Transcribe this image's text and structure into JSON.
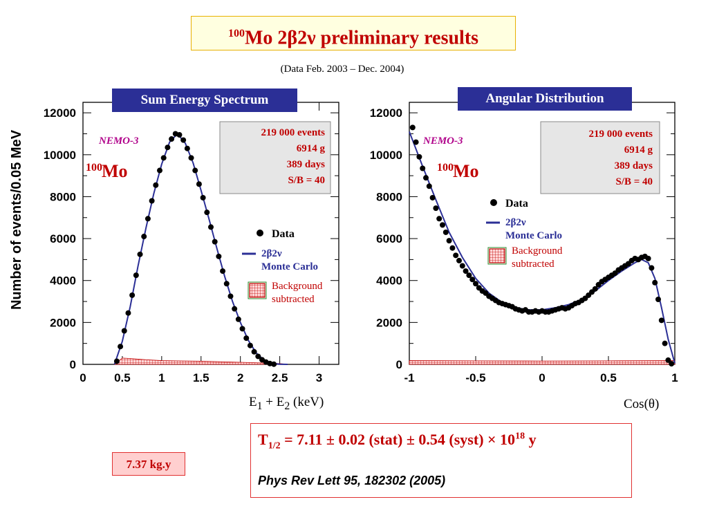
{
  "title": {
    "sup": "100",
    "text": "Mo 2β2ν preliminary results"
  },
  "subtitle": "(Data  Feb. 2003 –  Dec. 2004)",
  "panels": {
    "left_label": "Sum Energy Spectrum",
    "right_label": "Angular Distribution"
  },
  "ylabel": "Number of events/0.05 MeV",
  "annotations": {
    "experiment": "NEMO-3",
    "isotope_sup": "100",
    "isotope": "Mo",
    "info_lines": [
      "219 000  events",
      "6914 g",
      "389 days",
      "S/B = 40"
    ],
    "legend_data": "Data",
    "legend_mc_1": "2β2ν",
    "legend_mc_2": "Monte Carlo",
    "legend_bg_1": "Background",
    "legend_bg_2": "subtracted"
  },
  "xlabels": {
    "left": "E1 + E2  (keV)",
    "left_main": "E",
    "left_sub1": "1",
    "left_plus": " + E",
    "left_sub2": "2",
    "left_unit": "  (keV)",
    "right": "Cos(θ)"
  },
  "result": {
    "T": "T",
    "T_sub": "1/2",
    "value": " = 7.11 ± 0.02 (stat) ± 0.54 (syst) × 10",
    "exp": "18",
    "unit": " y",
    "reference": "Phys Rev Lett 95, 182302 (2005)"
  },
  "exposure": "7.37 kg.y",
  "colors": {
    "data": "#000000",
    "mc": "#2b2f96",
    "background": "#c00000",
    "info_box": "#e6e6e6"
  },
  "chart_data": [
    {
      "type": "scatter",
      "title": "Sum Energy Spectrum",
      "xlabel": "E1 + E2  (keV)",
      "ylabel": "Number of events/0.05 MeV",
      "xlim": [
        0,
        3.25
      ],
      "ylim": [
        0,
        12500
      ],
      "xticks": [
        "0",
        "0.5",
        "1",
        "1.5",
        "2",
        "2.5",
        "3"
      ],
      "xtick_values": [
        0,
        0.5,
        1,
        1.5,
        2,
        2.5,
        3
      ],
      "yticks": [
        "0",
        "2000",
        "4000",
        "6000",
        "8000",
        "10000",
        "12000"
      ],
      "ytick_values": [
        0,
        2000,
        4000,
        6000,
        8000,
        10000,
        12000
      ],
      "series": [
        {
          "name": "Data",
          "kind": "points",
          "x": [
            0.43,
            0.475,
            0.525,
            0.575,
            0.625,
            0.675,
            0.725,
            0.775,
            0.825,
            0.875,
            0.925,
            0.975,
            1.025,
            1.075,
            1.125,
            1.175,
            1.225,
            1.275,
            1.325,
            1.375,
            1.425,
            1.475,
            1.525,
            1.575,
            1.625,
            1.675,
            1.725,
            1.775,
            1.825,
            1.875,
            1.925,
            1.975,
            2.025,
            2.075,
            2.125,
            2.175,
            2.225,
            2.275,
            2.325,
            2.375,
            2.425
          ],
          "y": [
            150,
            850,
            1600,
            2450,
            3300,
            4250,
            5250,
            6100,
            6950,
            7800,
            8550,
            9250,
            9850,
            10350,
            10750,
            11000,
            10950,
            10700,
            10300,
            9850,
            9250,
            8600,
            7950,
            7250,
            6550,
            5850,
            5150,
            4450,
            3850,
            3250,
            2650,
            2150,
            1700,
            1250,
            900,
            600,
            380,
            220,
            110,
            40,
            10
          ]
        },
        {
          "name": "2β2ν Monte Carlo",
          "kind": "line",
          "x": [
            0.4,
            0.5,
            0.6,
            0.7,
            0.8,
            0.9,
            1.0,
            1.1,
            1.2,
            1.3,
            1.4,
            1.5,
            1.6,
            1.7,
            1.8,
            1.9,
            2.0,
            2.1,
            2.2,
            2.3,
            2.4,
            2.5,
            2.6
          ],
          "y": [
            0,
            1100,
            2750,
            4700,
            6500,
            8150,
            9550,
            10600,
            11000,
            10550,
            9600,
            8300,
            6950,
            5550,
            4200,
            3000,
            2000,
            1150,
            550,
            200,
            50,
            10,
            0
          ]
        },
        {
          "name": "Background subtracted",
          "kind": "hatched-area",
          "x": [
            0.4,
            0.5,
            0.6,
            0.8,
            1.0,
            1.5,
            2.0,
            2.5,
            2.6
          ],
          "y": [
            0,
            300,
            280,
            220,
            180,
            150,
            100,
            40,
            0
          ]
        }
      ]
    },
    {
      "type": "scatter",
      "title": "Angular Distribution",
      "xlabel": "Cos(θ)",
      "ylabel": "",
      "xlim": [
        -1,
        1
      ],
      "ylim": [
        0,
        12500
      ],
      "xticks": [
        "-1",
        "-0.5",
        "0",
        "0.5",
        "1"
      ],
      "xtick_values": [
        -1,
        -0.5,
        0,
        0.5,
        1
      ],
      "yticks": [
        "0",
        "2000",
        "4000",
        "6000",
        "8000",
        "10000",
        "12000"
      ],
      "ytick_values": [
        0,
        2000,
        4000,
        6000,
        8000,
        10000,
        12000
      ],
      "series": [
        {
          "name": "Data",
          "kind": "points",
          "x": [
            -0.975,
            -0.95,
            -0.925,
            -0.9,
            -0.875,
            -0.85,
            -0.825,
            -0.8,
            -0.775,
            -0.75,
            -0.725,
            -0.7,
            -0.675,
            -0.65,
            -0.625,
            -0.6,
            -0.575,
            -0.55,
            -0.525,
            -0.5,
            -0.475,
            -0.45,
            -0.425,
            -0.4,
            -0.375,
            -0.35,
            -0.325,
            -0.3,
            -0.275,
            -0.25,
            -0.225,
            -0.2,
            -0.175,
            -0.15,
            -0.125,
            -0.1,
            -0.075,
            -0.05,
            -0.025,
            0.0,
            0.025,
            0.05,
            0.075,
            0.1,
            0.125,
            0.15,
            0.175,
            0.2,
            0.225,
            0.25,
            0.275,
            0.3,
            0.325,
            0.35,
            0.375,
            0.4,
            0.425,
            0.45,
            0.475,
            0.5,
            0.525,
            0.55,
            0.575,
            0.6,
            0.625,
            0.65,
            0.675,
            0.7,
            0.725,
            0.75,
            0.775,
            0.8,
            0.825,
            0.85,
            0.875,
            0.9,
            0.925,
            0.95,
            0.975
          ],
          "y": [
            11300,
            10600,
            9900,
            9350,
            8900,
            8500,
            7950,
            7450,
            6950,
            6650,
            6300,
            5900,
            5550,
            5200,
            4950,
            4700,
            4450,
            4250,
            4050,
            3850,
            3650,
            3500,
            3400,
            3250,
            3150,
            3050,
            2950,
            2900,
            2850,
            2800,
            2750,
            2650,
            2600,
            2550,
            2600,
            2500,
            2500,
            2550,
            2500,
            2550,
            2500,
            2500,
            2550,
            2600,
            2650,
            2700,
            2650,
            2700,
            2800,
            2900,
            2950,
            3050,
            3150,
            3300,
            3450,
            3600,
            3800,
            3950,
            4050,
            4150,
            4250,
            4350,
            4500,
            4600,
            4700,
            4800,
            4950,
            5050,
            5000,
            5100,
            5150,
            5050,
            4600,
            3900,
            3100,
            2100,
            1000,
            200,
            30
          ]
        },
        {
          "name": "2β2ν Monte Carlo",
          "kind": "line",
          "x": [
            -1,
            -0.9,
            -0.8,
            -0.7,
            -0.6,
            -0.5,
            -0.4,
            -0.3,
            -0.2,
            -0.1,
            0.0,
            0.1,
            0.2,
            0.3,
            0.4,
            0.5,
            0.6,
            0.7,
            0.75,
            0.8,
            0.85,
            0.9,
            0.95,
            1.0
          ],
          "y": [
            11100,
            9450,
            7850,
            6300,
            5100,
            4100,
            3400,
            2950,
            2700,
            2600,
            2600,
            2700,
            2850,
            3100,
            3500,
            4000,
            4450,
            4850,
            5000,
            4850,
            4100,
            2700,
            1200,
            50
          ]
        },
        {
          "name": "Background subtracted",
          "kind": "hatched-area",
          "x": [
            -1,
            -0.5,
            0,
            0.5,
            1
          ],
          "y": [
            180,
            170,
            160,
            170,
            180
          ]
        }
      ]
    }
  ]
}
